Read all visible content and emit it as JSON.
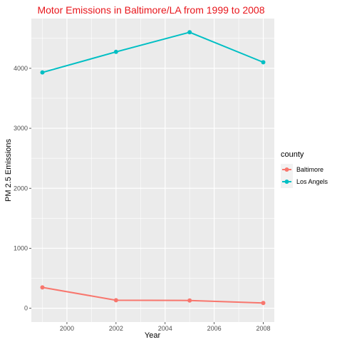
{
  "chart_data": {
    "type": "line",
    "title": "Motor Emissions in Baltimore/LA  from 1999 to 2008",
    "xlabel": "Year",
    "ylabel": "PM 2.5 Emissions",
    "xlim": [
      1998.55,
      2008.45
    ],
    "ylim": [
      -230,
      4830
    ],
    "x_ticks": [
      2000,
      2002,
      2004,
      2006,
      2008
    ],
    "y_ticks": [
      0,
      1000,
      2000,
      3000,
      4000
    ],
    "grid": true,
    "legend": {
      "title": "county",
      "position": "right"
    },
    "x": [
      1999,
      2002,
      2005,
      2008
    ],
    "series": [
      {
        "name": "Baltimore",
        "color": "#f8766d",
        "values": [
          347,
          134,
          130,
          88
        ]
      },
      {
        "name": "Los Angels",
        "color": "#00bfc4",
        "values": [
          3931,
          4274,
          4601,
          4101
        ]
      }
    ]
  }
}
